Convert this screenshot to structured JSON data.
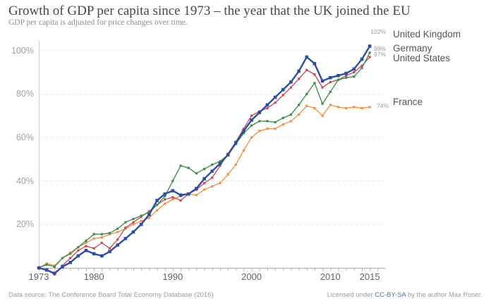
{
  "header": {
    "title": "Growth of GDP per capita since 1973 – the year that the UK joined the EU",
    "subtitle": "GDP per capita is adjusted for price changes over time."
  },
  "chart_data": {
    "type": "line",
    "title": "Growth of GDP per capita since 1973 – the year that the UK joined the EU",
    "subtitle": "GDP per capita is adjusted for price changes over time.",
    "x_start_year": 1973,
    "x_end_year": 2015,
    "x": [
      1973,
      1974,
      1975,
      1976,
      1977,
      1978,
      1979,
      1980,
      1981,
      1982,
      1983,
      1984,
      1985,
      1986,
      1987,
      1988,
      1989,
      1990,
      1991,
      1992,
      1993,
      1994,
      1995,
      1996,
      1997,
      1998,
      1999,
      2000,
      2001,
      2002,
      2003,
      2004,
      2005,
      2006,
      2007,
      2008,
      2009,
      2010,
      2011,
      2012,
      2013,
      2014,
      2015
    ],
    "series": [
      {
        "name": "France",
        "color": "#ef9247",
        "end_label": "74%",
        "final_value": 74,
        "values": [
          0,
          2,
          1,
          4.5,
          7,
          9.5,
          11.5,
          13.5,
          14,
          15.5,
          16.5,
          18,
          20,
          21.5,
          23,
          26.5,
          29.5,
          31.5,
          33,
          34,
          33.5,
          36,
          37.5,
          39,
          43,
          47.5,
          54,
          60,
          63,
          64,
          64,
          66,
          67.5,
          70.5,
          74.5,
          73.5,
          70,
          75,
          74,
          73.5,
          74,
          73.5,
          74
        ]
      },
      {
        "name": "United States",
        "color": "#c64a5e",
        "end_label": "97%",
        "final_value": 97,
        "values": [
          0,
          -1,
          -3,
          1,
          4.5,
          8,
          10,
          9,
          11.5,
          9,
          13,
          18.5,
          21,
          23.5,
          26,
          29,
          31.5,
          32.5,
          31,
          34,
          36,
          39,
          41.5,
          47,
          52.5,
          58,
          64,
          70,
          72,
          73.5,
          76,
          79.5,
          83,
          87,
          91,
          89,
          83,
          85.5,
          86.5,
          88.5,
          90,
          93,
          97
        ]
      },
      {
        "name": "Germany",
        "color": "#3f8e4d",
        "end_label": "99%",
        "final_value": 99,
        "values": [
          0,
          1.5,
          0.5,
          4.5,
          6.5,
          9.5,
          12.5,
          15.5,
          15.5,
          16,
          18,
          21,
          22.5,
          24,
          25.5,
          29,
          33,
          40,
          47,
          46,
          43.5,
          45.5,
          47.5,
          49,
          52,
          57,
          62,
          65.5,
          67.5,
          67.5,
          67,
          69,
          70.5,
          75,
          80,
          85,
          75.5,
          81,
          86.5,
          87.5,
          88,
          92,
          99
        ]
      },
      {
        "name": "United Kingdom",
        "color": "#2e4f9e",
        "end_label": "102%",
        "final_value": 102,
        "values": [
          0,
          -1,
          -2.5,
          0.5,
          2.5,
          5.5,
          8,
          6.5,
          5.5,
          7.5,
          10.5,
          13.5,
          16.5,
          20,
          24.5,
          31,
          34,
          35.5,
          33.5,
          34,
          36.5,
          41,
          44.5,
          48,
          52,
          57.5,
          63,
          68,
          71.5,
          75,
          78.5,
          82,
          85.5,
          90.5,
          97,
          94,
          86,
          87.5,
          88.5,
          89.5,
          91.5,
          96,
          102
        ]
      }
    ],
    "yticks": [
      {
        "value": 20,
        "label": "20%"
      },
      {
        "value": 40,
        "label": "40%"
      },
      {
        "value": 60,
        "label": "60%"
      },
      {
        "value": 80,
        "label": "80%"
      },
      {
        "value": 100,
        "label": "100%"
      }
    ],
    "xticks": [
      {
        "year": 1973,
        "label": "1973"
      },
      {
        "year": 1980,
        "label": "1980"
      },
      {
        "year": 1990,
        "label": "1990"
      },
      {
        "year": 2000,
        "label": "2000"
      },
      {
        "year": 2010,
        "label": "2010"
      },
      {
        "year": 2015,
        "label": "2015"
      }
    ],
    "ylim": [
      -5,
      105
    ],
    "grid": "horizontal dotted",
    "legend_position": "right"
  },
  "footer": {
    "source": "Data source: The Conference Board Total Economy Database (2016)",
    "license_prefix": "Licensed under ",
    "license_link": "CC-BY-SA",
    "license_suffix": " by the author Max Roser."
  }
}
